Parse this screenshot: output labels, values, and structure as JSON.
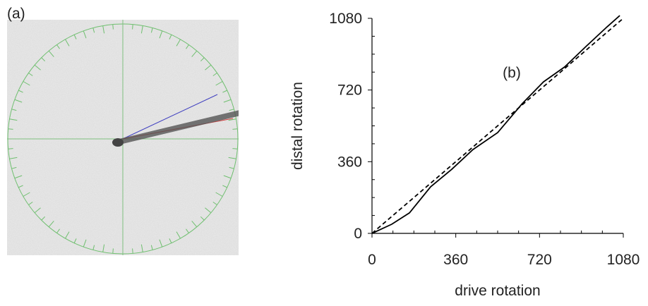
{
  "panel_a_label": "(a)",
  "chart_data": {
    "type": "line",
    "annotation": "(b)",
    "x_label": "drive rotation",
    "y_label": "distal rotation",
    "series": [
      {
        "color": "#000000",
        "dash": false,
        "x": [
          0,
          85,
          161,
          252,
          343,
          434,
          540,
          646,
          737,
          828,
          919,
          1010,
          1065
        ],
        "values": [
          0,
          46,
          103,
          234,
          322,
          421,
          506,
          652,
          761,
          836,
          938,
          1037,
          1094
        ]
      },
      {
        "color": "#000000",
        "dash": true,
        "x": [
          0,
          1080
        ],
        "values": [
          0,
          1080
        ]
      }
    ],
    "xlim": [
      0,
      1080
    ],
    "ylim": [
      0,
      1080
    ],
    "xticks": [
      0,
      360,
      720,
      1080
    ],
    "yticks": [
      0,
      360,
      720,
      1080
    ]
  }
}
